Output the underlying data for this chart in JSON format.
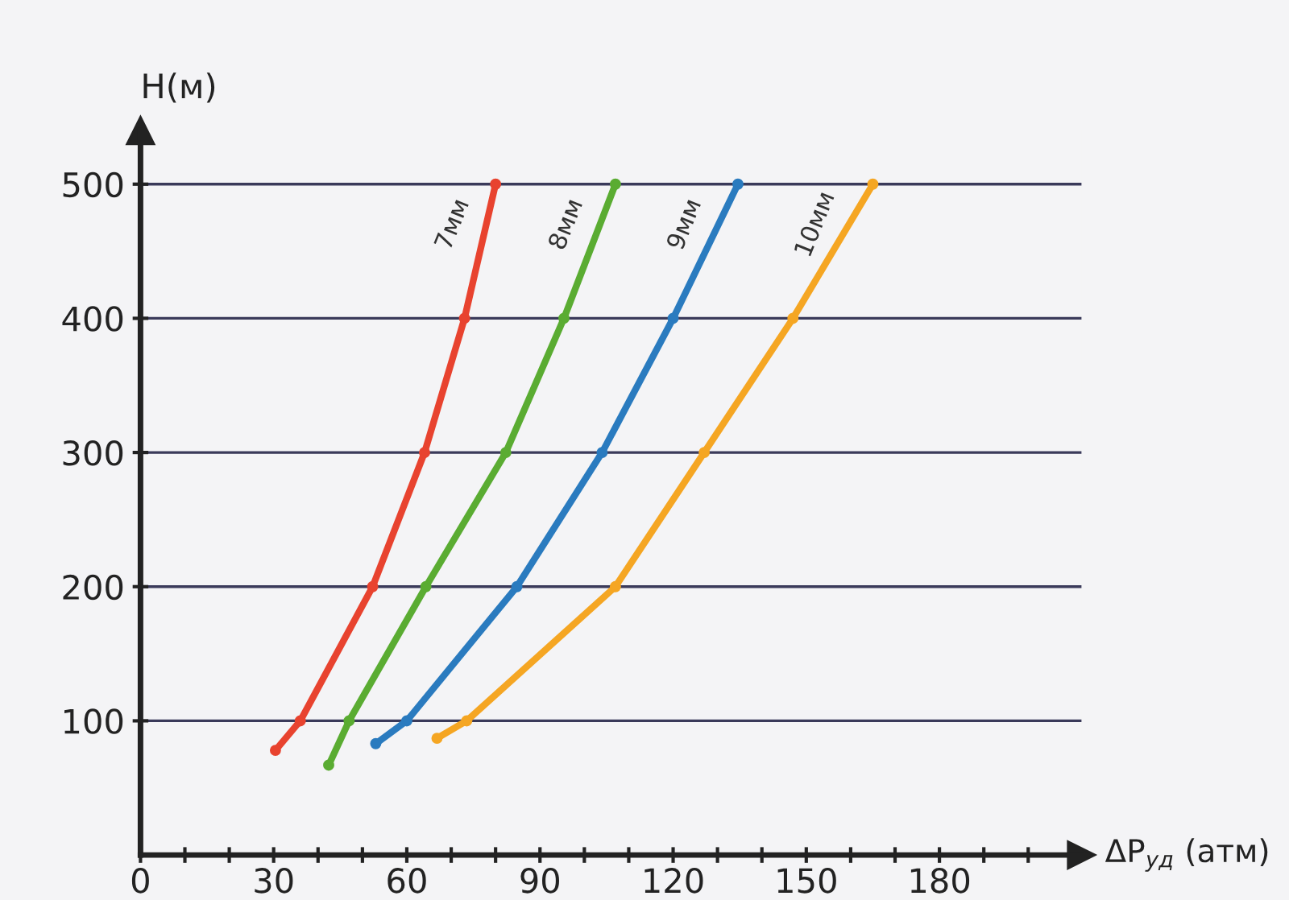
{
  "chart_data": {
    "type": "line",
    "xlabel": "ΔP$_{уд}$ (атм)",
    "ylabel": "H(м)",
    "xlim": [
      0,
      212
    ],
    "ylim": [
      0,
      540
    ],
    "xticks": [
      {
        "value": 0,
        "label": "0"
      },
      {
        "value": 10,
        "label": null
      },
      {
        "value": 20,
        "label": null
      },
      30,
      {
        "value": 40,
        "label": null
      },
      {
        "value": 50,
        "label": null
      },
      60,
      {
        "value": 70,
        "label": null
      },
      {
        "value": 80,
        "label": null
      },
      90,
      {
        "value": 100,
        "label": null
      },
      {
        "value": 110,
        "label": null
      },
      120,
      {
        "value": 130,
        "label": null
      },
      {
        "value": 140,
        "label": null
      },
      150,
      {
        "value": 160,
        "label": null
      },
      {
        "value": 170,
        "label": null
      },
      180,
      {
        "value": 190,
        "label": null
      },
      {
        "value": 200,
        "label": null
      }
    ],
    "yticks": [
      100,
      200,
      300,
      400,
      500
    ],
    "grid": "y",
    "marker": "circle",
    "line_style": "solid",
    "series": [
      {
        "name": "7мм",
        "color": "#e8432f",
        "x": [
          30.4,
          36,
          52.3,
          64,
          73,
          80
        ],
        "values": [
          78,
          100,
          200,
          300,
          400,
          500
        ]
      },
      {
        "name": "8мм",
        "color": "#5aac32",
        "x": [
          42.4,
          47,
          64.3,
          82.3,
          95.4,
          107
        ],
        "values": [
          67,
          100,
          200,
          300,
          400,
          500
        ]
      },
      {
        "name": "9мм",
        "color": "#2a7bbf",
        "x": [
          53,
          60,
          84.8,
          104,
          120,
          134.6
        ],
        "values": [
          83,
          100,
          200,
          300,
          400,
          500
        ]
      },
      {
        "name": "10мм",
        "color": "#f5a623",
        "x": [
          66.8,
          73.5,
          107,
          127,
          147,
          165
        ],
        "values": [
          87,
          100,
          200,
          300,
          400,
          500
        ]
      }
    ]
  }
}
